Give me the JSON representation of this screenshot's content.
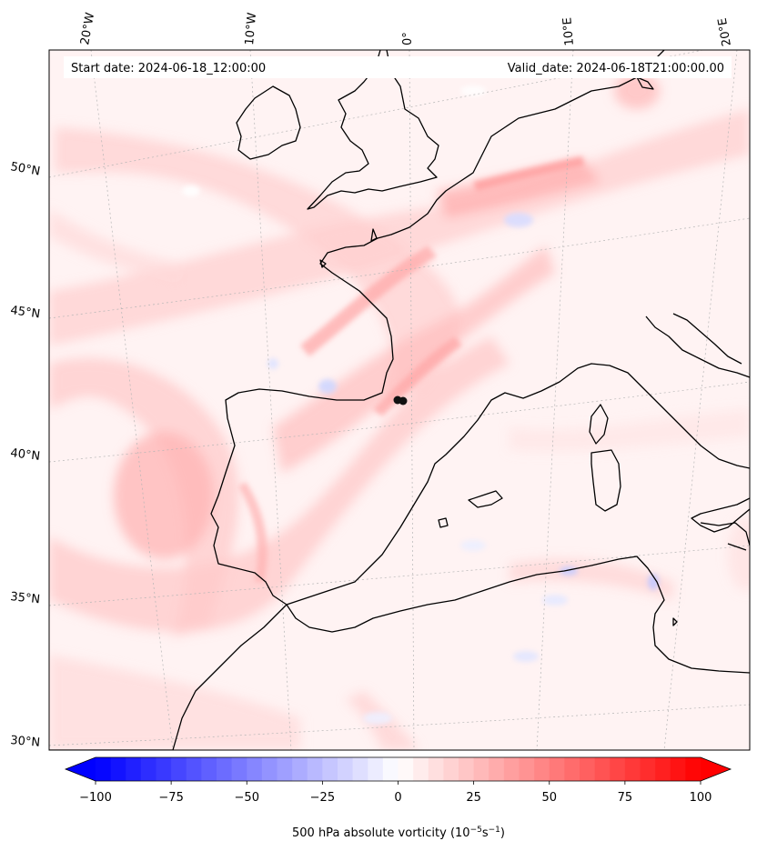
{
  "header": {
    "start_date": "Start date: 2024-06-18_12:00:00",
    "valid_date": "Valid_date: 2024-06-18T21:00:00.00"
  },
  "longitude_labels": [
    "20°W",
    "10°W",
    "0°",
    "10°E",
    "20°E"
  ],
  "latitude_labels": [
    "50°N",
    "45°N",
    "40°N",
    "35°N",
    "30°N"
  ],
  "colorbar": {
    "label": "500 hPa absolute vorticity (10",
    "label_exp": "−5",
    "label_unit": "s",
    "label_exp2": "−1",
    "label_close": ")",
    "ticks": [
      "−100",
      "−75",
      "−50",
      "−25",
      "0",
      "25",
      "50",
      "75",
      "100"
    ],
    "min": -100,
    "max": 100,
    "low_color": "#0000ff",
    "mid_color": "#ffffff",
    "high_color": "#ff0000"
  },
  "marker": {
    "color": "#111111",
    "shape": "filled-circle"
  },
  "colors": {
    "field_background": "#fff1f1",
    "coastline": "#000000",
    "gridline": "#aaaaaa"
  }
}
